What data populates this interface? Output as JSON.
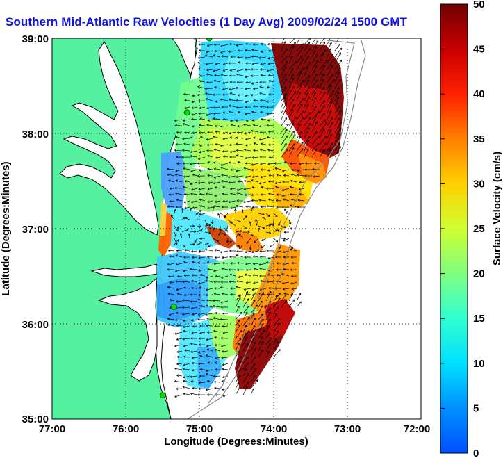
{
  "title": "Southern Mid-Atlantic Raw Velocities (1 Day Avg) 2009/02/24 1500 GMT",
  "axes": {
    "xlabel": "Longitude (Degrees:Minutes)",
    "ylabel": "Latitude (Degrees:Minutes)",
    "xticks": [
      "77:00",
      "76:00",
      "75:00",
      "74:00",
      "73:00",
      "72:00"
    ],
    "yticks": [
      "39:00",
      "38:00",
      "37:00",
      "36:00",
      "35:00"
    ],
    "xlim": [
      -77,
      -72
    ],
    "ylim": [
      35,
      39
    ],
    "grid": "dotted"
  },
  "colorbar": {
    "label": "Surface Velocity (cm/s)",
    "min": 0,
    "max": 50,
    "ticks": [
      "0",
      "5",
      "10",
      "15",
      "20",
      "25",
      "30",
      "35",
      "40",
      "45",
      "50"
    ]
  },
  "colors": {
    "title": "#1010e8",
    "land": "#55f0a0",
    "coast": "#000000"
  },
  "stations": [
    {
      "lon": -74.87,
      "lat": 39.0
    },
    {
      "lon": -75.17,
      "lat": 38.22
    },
    {
      "lon": -75.35,
      "lat": 36.18
    },
    {
      "lon": -75.5,
      "lat": 35.25
    }
  ]
}
